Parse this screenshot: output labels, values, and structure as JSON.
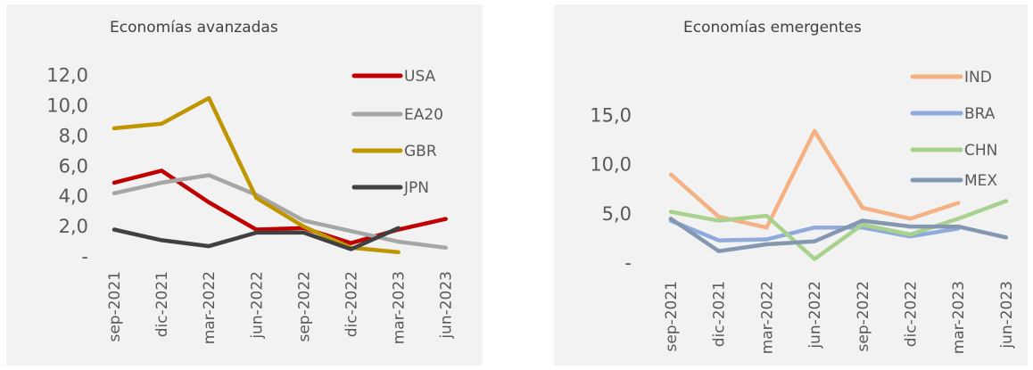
{
  "chart_data": [
    {
      "type": "line",
      "title": "Economías avanzadas",
      "categories": [
        "sep-2021",
        "dic-2021",
        "mar-2022",
        "jun-2022",
        "sep-2022",
        "dic-2022",
        "mar-2023",
        "jun-2023"
      ],
      "ylim": [
        0,
        12
      ],
      "yticks": [
        0,
        2,
        4,
        6,
        8,
        10,
        12
      ],
      "ytick_labels": [
        "-",
        "2,0",
        "4,0",
        "6,0",
        "8,0",
        "10,0",
        "12,0"
      ],
      "grid": false,
      "legend_position": "right",
      "series": [
        {
          "name": "USA",
          "color": "#c00000",
          "values": [
            4.9,
            5.7,
            3.6,
            1.8,
            1.9,
            0.9,
            1.8,
            2.5
          ]
        },
        {
          "name": "EA20",
          "color": "#a6a6a6",
          "values": [
            4.2,
            4.9,
            5.4,
            4.1,
            2.4,
            1.7,
            1.0,
            0.6
          ]
        },
        {
          "name": "GBR",
          "color": "#c09600",
          "values": [
            8.5,
            8.8,
            10.5,
            3.9,
            2.0,
            0.6,
            0.3,
            null
          ]
        },
        {
          "name": "JPN",
          "color": "#404040",
          "values": [
            1.8,
            1.1,
            0.7,
            1.6,
            1.6,
            0.5,
            1.9,
            null
          ]
        }
      ]
    },
    {
      "type": "line",
      "title": "Economías emergentes",
      "categories": [
        "sep-2021",
        "dic-2021",
        "mar-2022",
        "jun-2022",
        "sep-2022",
        "dic-2022",
        "mar-2023",
        "jun-2023"
      ],
      "ylim": [
        0,
        15
      ],
      "yticks": [
        0,
        5,
        10,
        15
      ],
      "ytick_labels": [
        "-",
        "5,0",
        "10,0",
        "15,0"
      ],
      "grid": false,
      "legend_position": "right",
      "series": [
        {
          "name": "IND",
          "color": "#f4b183",
          "values": [
            9.0,
            4.7,
            3.6,
            13.4,
            5.6,
            4.5,
            6.1,
            null
          ]
        },
        {
          "name": "BRA",
          "color": "#8faadc",
          "values": [
            4.3,
            2.3,
            2.4,
            3.6,
            3.6,
            2.7,
            3.5,
            null
          ]
        },
        {
          "name": "CHN",
          "color": "#a9d18e",
          "values": [
            5.2,
            4.3,
            4.8,
            0.4,
            3.9,
            2.9,
            4.5,
            6.3
          ]
        },
        {
          "name": "MEX",
          "color": "#8497b0",
          "values": [
            4.5,
            1.2,
            1.9,
            2.2,
            4.3,
            3.7,
            3.7,
            2.6
          ]
        }
      ]
    }
  ]
}
